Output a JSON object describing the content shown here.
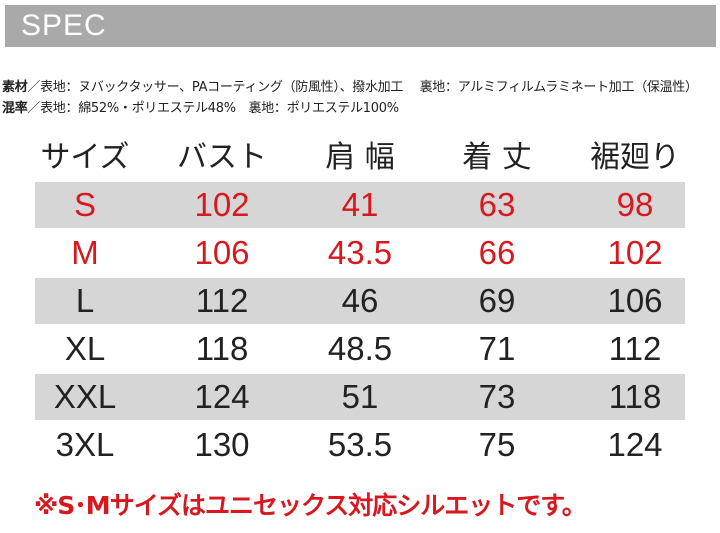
{
  "header": {
    "title": "SPEC"
  },
  "materials": [
    {
      "label": "素材",
      "text": "／表地：ヌバックタッサー、PAコーティング（防風性）、撥水加工　 裏地：アルミフィルムラミネート加工（保温性）"
    },
    {
      "label": "混率",
      "text": "／表地：綿52%・ポリエステル48%　裏地：ポリエステル100%"
    }
  ],
  "table": {
    "header": [
      "サイズ",
      "バスト",
      "肩 幅",
      "着 丈",
      "裾廻り"
    ],
    "rows": [
      [
        "S",
        102,
        41,
        63,
        98
      ],
      [
        "M",
        106,
        43.5,
        66,
        102
      ],
      [
        "L",
        112,
        46,
        69,
        106
      ],
      [
        "XL",
        118,
        48.5,
        71,
        112
      ],
      [
        "XXL",
        124,
        51,
        73,
        118
      ],
      [
        "3XL",
        130,
        53.5,
        75,
        124
      ]
    ]
  },
  "note": "※S･Mサイズはユニセックス対応シルエットです。"
}
